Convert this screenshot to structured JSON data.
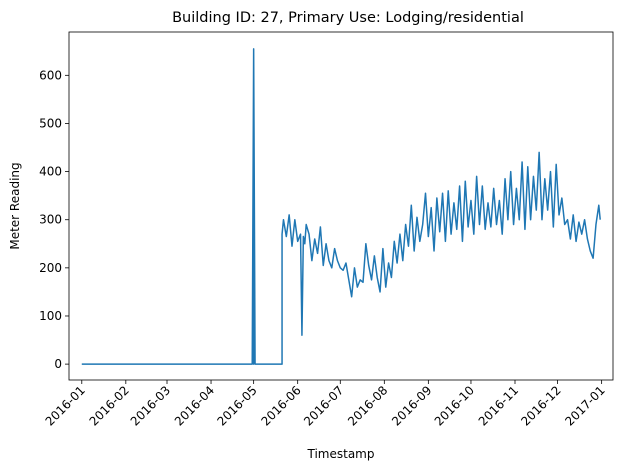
{
  "chart_data": {
    "type": "line",
    "title": "Building ID: 27, Primary Use: Lodging/residential",
    "xlabel": "Timestamp",
    "ylabel": "Meter Reading",
    "xlim": [
      "2015-12-23",
      "2017-01-09"
    ],
    "ylim": [
      -33,
      690
    ],
    "grid": false,
    "legend": "none",
    "color": "#1f77b4",
    "x_ticks": [
      "2016-01",
      "2016-02",
      "2016-03",
      "2016-04",
      "2016-05",
      "2016-06",
      "2016-07",
      "2016-08",
      "2016-09",
      "2016-10",
      "2016-11",
      "2016-12",
      "2017-01"
    ],
    "y_ticks": [
      0,
      100,
      200,
      300,
      400,
      500,
      600
    ],
    "series": [
      {
        "x": [
          "2016-01-01",
          "2016-04-30",
          "2016-05-01",
          "2016-05-01",
          "2016-05-01",
          "2016-05-02",
          "2016-05-21",
          "2016-05-21",
          "2016-05-22",
          "2016-05-24",
          "2016-05-26",
          "2016-05-28",
          "2016-05-30",
          "2016-06-01",
          "2016-06-03",
          "2016-06-04",
          "2016-06-05",
          "2016-06-06",
          "2016-06-07",
          "2016-06-09",
          "2016-06-11",
          "2016-06-13",
          "2016-06-15",
          "2016-06-17",
          "2016-06-19",
          "2016-06-21",
          "2016-06-23",
          "2016-06-25",
          "2016-06-27",
          "2016-06-29",
          "2016-07-01",
          "2016-07-03",
          "2016-07-05",
          "2016-07-07",
          "2016-07-09",
          "2016-07-11",
          "2016-07-13",
          "2016-07-15",
          "2016-07-17",
          "2016-07-19",
          "2016-07-21",
          "2016-07-23",
          "2016-07-25",
          "2016-07-27",
          "2016-07-29",
          "2016-07-31",
          "2016-08-02",
          "2016-08-04",
          "2016-08-06",
          "2016-08-08",
          "2016-08-10",
          "2016-08-12",
          "2016-08-14",
          "2016-08-16",
          "2016-08-18",
          "2016-08-20",
          "2016-08-22",
          "2016-08-24",
          "2016-08-26",
          "2016-08-28",
          "2016-08-30",
          "2016-09-01",
          "2016-09-03",
          "2016-09-05",
          "2016-09-07",
          "2016-09-09",
          "2016-09-11",
          "2016-09-13",
          "2016-09-15",
          "2016-09-17",
          "2016-09-19",
          "2016-09-21",
          "2016-09-23",
          "2016-09-25",
          "2016-09-27",
          "2016-09-29",
          "2016-10-01",
          "2016-10-03",
          "2016-10-05",
          "2016-10-07",
          "2016-10-09",
          "2016-10-11",
          "2016-10-13",
          "2016-10-15",
          "2016-10-17",
          "2016-10-19",
          "2016-10-21",
          "2016-10-23",
          "2016-10-25",
          "2016-10-27",
          "2016-10-29",
          "2016-10-31",
          "2016-11-02",
          "2016-11-04",
          "2016-11-06",
          "2016-11-08",
          "2016-11-10",
          "2016-11-12",
          "2016-11-14",
          "2016-11-16",
          "2016-11-18",
          "2016-11-20",
          "2016-11-22",
          "2016-11-24",
          "2016-11-26",
          "2016-11-28",
          "2016-11-30",
          "2016-12-02",
          "2016-12-04",
          "2016-12-06",
          "2016-12-08",
          "2016-12-10",
          "2016-12-12",
          "2016-12-14",
          "2016-12-16",
          "2016-12-18",
          "2016-12-20",
          "2016-12-22",
          "2016-12-24",
          "2016-12-26",
          "2016-12-28",
          "2016-12-30",
          "2016-12-31"
        ],
        "y": [
          0,
          0,
          655,
          0,
          655,
          0,
          0,
          270,
          300,
          265,
          310,
          245,
          300,
          255,
          270,
          60,
          265,
          250,
          290,
          270,
          215,
          260,
          230,
          285,
          205,
          250,
          215,
          200,
          240,
          215,
          200,
          195,
          210,
          175,
          140,
          200,
          160,
          175,
          170,
          250,
          205,
          175,
          225,
          180,
          150,
          240,
          160,
          210,
          180,
          255,
          210,
          270,
          215,
          290,
          245,
          330,
          235,
          305,
          255,
          290,
          355,
          265,
          325,
          235,
          345,
          275,
          355,
          255,
          360,
          270,
          335,
          280,
          370,
          255,
          380,
          285,
          340,
          270,
          390,
          290,
          370,
          280,
          335,
          285,
          365,
          290,
          340,
          270,
          385,
          300,
          400,
          290,
          365,
          300,
          420,
          280,
          410,
          300,
          390,
          320,
          440,
          300,
          385,
          320,
          400,
          285,
          415,
          310,
          345,
          290,
          300,
          260,
          310,
          255,
          295,
          270,
          300,
          260,
          235,
          220,
          290,
          330,
          300
        ]
      }
    ]
  }
}
